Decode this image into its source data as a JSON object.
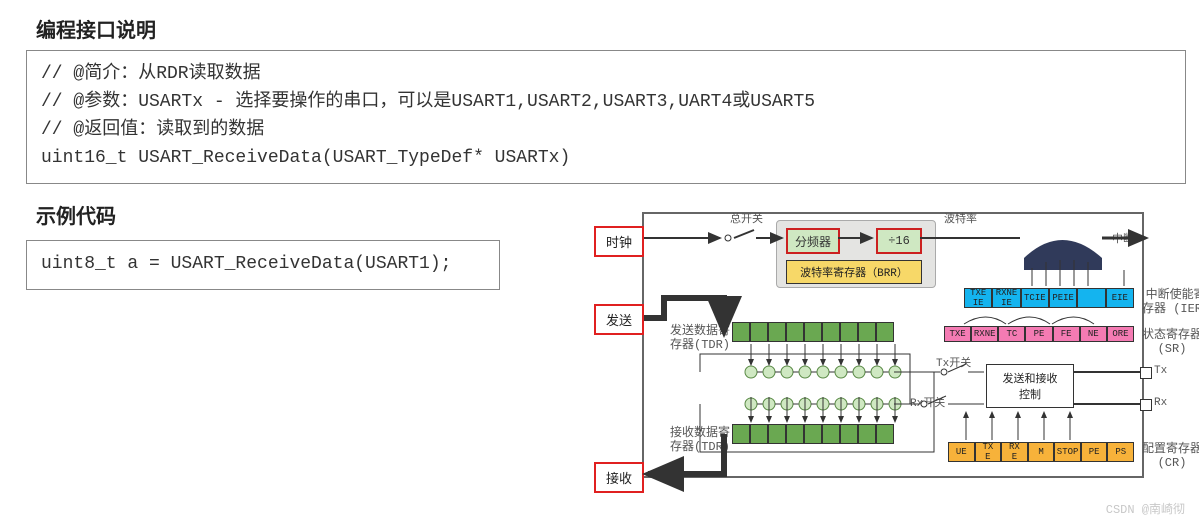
{
  "headings": {
    "h1": "编程接口说明",
    "h2": "示例代码"
  },
  "code1": "// @简介：从RDR读取数据\n// @参数：USARTx - 选择要操作的串口，可以是USART1,USART2,USART3,UART4或USART5\n// @返回值：读取到的数据\nuint16_t USART_ReceiveData(USART_TypeDef* USARTx)",
  "code2": "uint8_t a = USART_ReceiveData(USART1);",
  "diagram": {
    "colors": {
      "red": "#e02020",
      "green_fill": "#cfe8c2",
      "green_border": "#6aa851",
      "grey": "#e4e4e2",
      "yellow": "#f7d868",
      "blue": "#14b4ef",
      "magenta": "#f47bb3",
      "orange": "#f7b23a",
      "circle_fill": "#cfe8c2",
      "gate": "#303a5a"
    },
    "left_labels": {
      "clock": "时钟",
      "send": "发送",
      "recv": "接收"
    },
    "top_labels": {
      "master_switch": "总开关",
      "baud": "波特率",
      "interrupt": "中断"
    },
    "right_labels": {
      "ier": "中断使能寄\n存器 (IER)",
      "sr": "状态寄存器\n(SR)",
      "tx": "Tx",
      "rx": "Rx",
      "cr": "配置寄存器\n(CR)"
    },
    "inner": {
      "divider": "分频器",
      "div16": "÷16",
      "brr": "波特率寄存器（BRR）",
      "tx_switch": "Tx开关",
      "rx_switch": "Rx开关",
      "sendrecv": "发送和接收\n控制",
      "tdr": "发送数据寄\n存器(TDR)",
      "rdr": "接收数据寄\n存器(TDR)"
    },
    "ier_cells": [
      "TXE\nIE",
      "RXNE\nIE",
      "TCIE",
      "PEIE",
      "",
      "EIE"
    ],
    "sr_cells": [
      "TXE",
      "RXNE",
      "TC",
      "PE",
      "FE",
      "NE",
      "ORE"
    ],
    "cr_cells": [
      "UE",
      "TX\nE",
      "RX\nE",
      "M",
      "STOP",
      "PE",
      "PS"
    ],
    "tdr_count": 9,
    "circle_count": 9
  },
  "watermark": "CSDN @南崎彻"
}
